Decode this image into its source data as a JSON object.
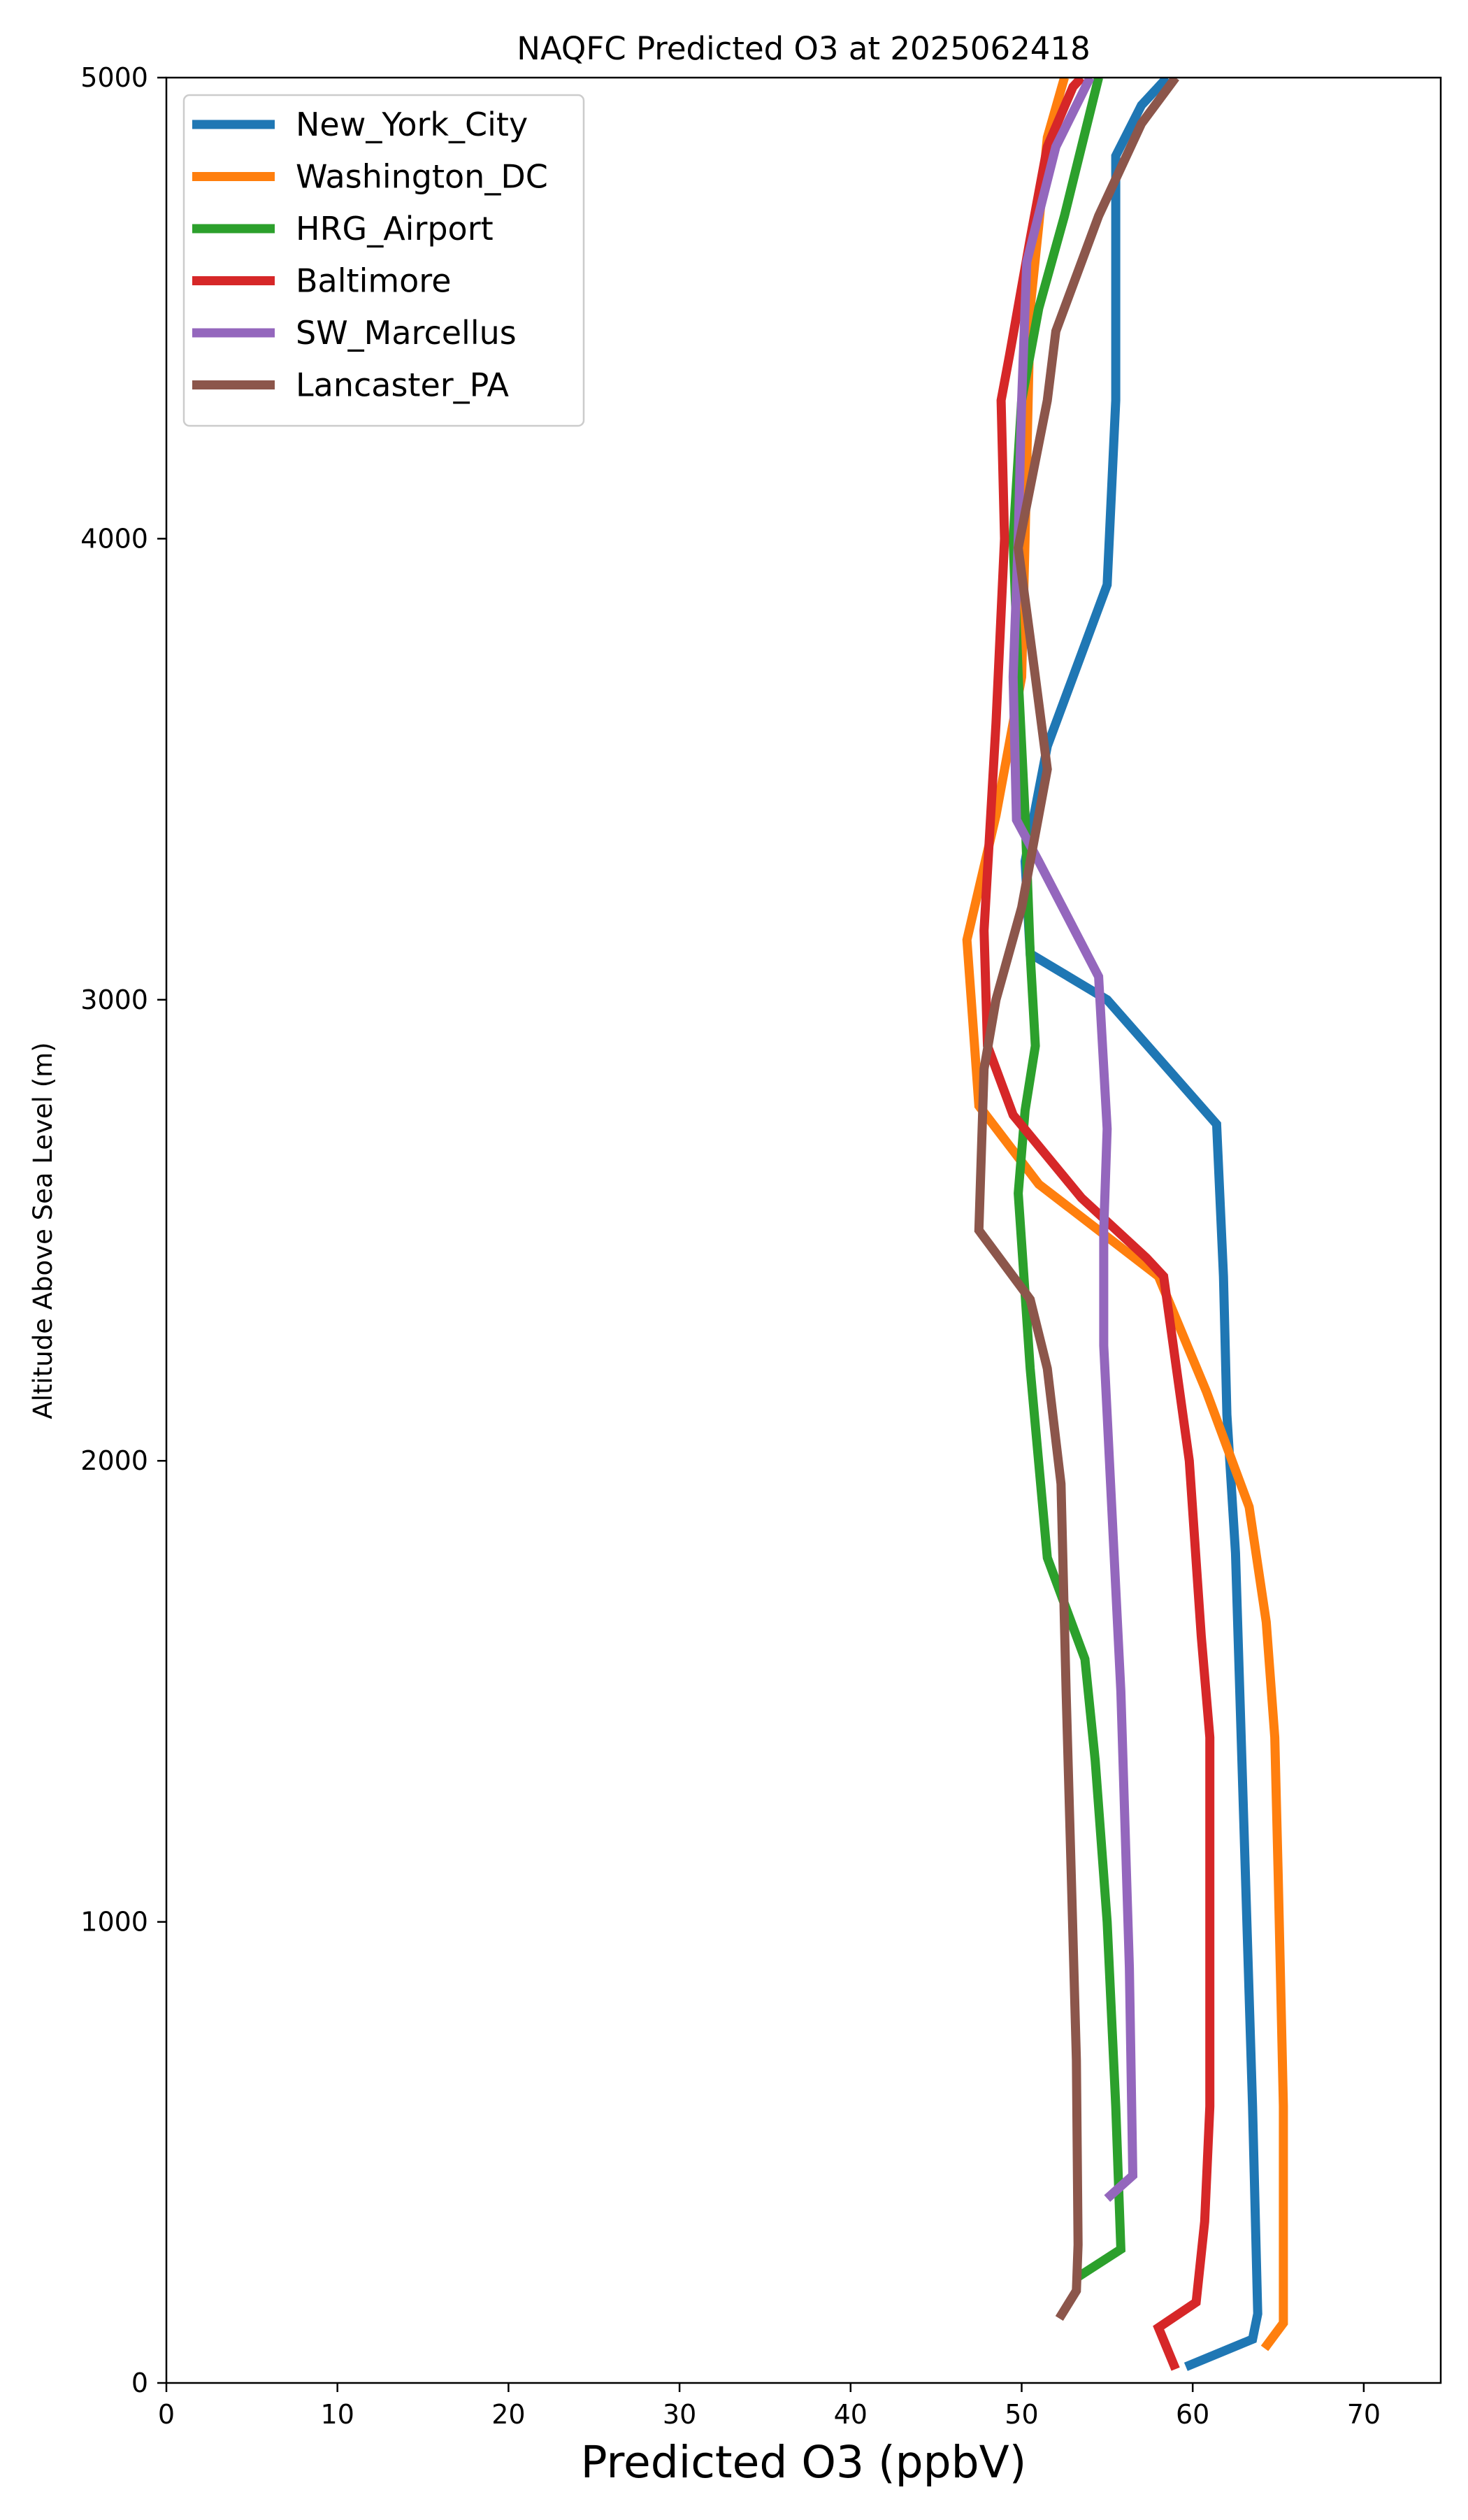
{
  "chart_data": {
    "type": "line",
    "title": "NAQFC Predicted O3 at 2025062418",
    "xlabel": "Predicted O3 (ppbV)",
    "ylabel": "Altitude Above Sea Level (m)",
    "xlim": [
      0,
      74.5
    ],
    "ylim": [
      0,
      5000
    ],
    "xticks": [
      0,
      10,
      20,
      30,
      40,
      50,
      60,
      70
    ],
    "yticks": [
      0,
      1000,
      2000,
      3000,
      4000,
      5000
    ],
    "grid": false,
    "legend_position": "top-left",
    "series": [
      {
        "name": "New_York_City",
        "color": "#1f77b4",
        "points": [
          [
            59.6,
            35
          ],
          [
            63.5,
            95
          ],
          [
            63.8,
            150
          ],
          [
            63.5,
            600
          ],
          [
            63,
            1200
          ],
          [
            62.5,
            1800
          ],
          [
            62,
            2100
          ],
          [
            61.8,
            2400
          ],
          [
            61.4,
            2730
          ],
          [
            55,
            3000
          ],
          [
            50.5,
            3100
          ],
          [
            50.2,
            3300
          ],
          [
            51.5,
            3550
          ],
          [
            55,
            3900
          ],
          [
            55.5,
            4300
          ],
          [
            55.5,
            4830
          ],
          [
            57,
            4940
          ],
          [
            58.5,
            5000
          ]
        ]
      },
      {
        "name": "Washington_DC",
        "color": "#ff7f0e",
        "points": [
          [
            64.2,
            75
          ],
          [
            65.3,
            130
          ],
          [
            65.3,
            600
          ],
          [
            65,
            1100
          ],
          [
            64.8,
            1400
          ],
          [
            64.3,
            1650
          ],
          [
            63.3,
            1900
          ],
          [
            60.8,
            2150
          ],
          [
            58,
            2400
          ],
          [
            51,
            2600
          ],
          [
            47.5,
            2770
          ],
          [
            46.8,
            3130
          ],
          [
            48.5,
            3400
          ],
          [
            50,
            3700
          ],
          [
            50.2,
            4000
          ],
          [
            50.5,
            4500
          ],
          [
            51,
            4680
          ],
          [
            51.5,
            4870
          ],
          [
            52.5,
            5000
          ]
        ]
      },
      {
        "name": "HRG_Airport",
        "color": "#2ca02c",
        "points": [
          [
            53.3,
            230
          ],
          [
            55.8,
            290
          ],
          [
            55.5,
            600
          ],
          [
            55,
            1000
          ],
          [
            54.3,
            1350
          ],
          [
            53.7,
            1570
          ],
          [
            51.5,
            1790
          ],
          [
            50.5,
            2200
          ],
          [
            49.8,
            2580
          ],
          [
            50.2,
            2760
          ],
          [
            50.8,
            2900
          ],
          [
            50.5,
            3100
          ],
          [
            50.2,
            3400
          ],
          [
            49.8,
            3700
          ],
          [
            49.5,
            4000
          ],
          [
            50,
            4300
          ],
          [
            51,
            4500
          ],
          [
            52.5,
            4700
          ],
          [
            53.5,
            4850
          ],
          [
            54.5,
            5000
          ]
        ]
      },
      {
        "name": "Baltimore",
        "color": "#d62728",
        "points": [
          [
            59,
            30
          ],
          [
            58,
            120
          ],
          [
            60.2,
            175
          ],
          [
            60.7,
            350
          ],
          [
            61,
            600
          ],
          [
            61,
            1000
          ],
          [
            61,
            1400
          ],
          [
            60.5,
            1620
          ],
          [
            59.8,
            2000
          ],
          [
            58.3,
            2400
          ],
          [
            57.3,
            2440
          ],
          [
            53.5,
            2570
          ],
          [
            49.5,
            2750
          ],
          [
            48,
            2900
          ],
          [
            47.8,
            3150
          ],
          [
            48.5,
            3600
          ],
          [
            49,
            4000
          ],
          [
            48.8,
            4300
          ],
          [
            49.3,
            4400
          ],
          [
            50.5,
            4650
          ],
          [
            51.5,
            4850
          ],
          [
            53,
            4980
          ],
          [
            53.5,
            5000
          ]
        ]
      },
      {
        "name": "SW_Marcellus",
        "color": "#9467bd",
        "points": [
          [
            55,
            400
          ],
          [
            56.5,
            450
          ],
          [
            56.3,
            900
          ],
          [
            55.8,
            1500
          ],
          [
            55.2,
            1950
          ],
          [
            54.8,
            2250
          ],
          [
            54.8,
            2500
          ],
          [
            55,
            2720
          ],
          [
            54.5,
            3050
          ],
          [
            51,
            3300
          ],
          [
            49.7,
            3390
          ],
          [
            49.5,
            3700
          ],
          [
            49.8,
            4000
          ],
          [
            50,
            4300
          ],
          [
            50.3,
            4600
          ],
          [
            52,
            4850
          ],
          [
            54,
            5000
          ]
        ]
      },
      {
        "name": "Lancaster_PA",
        "color": "#8c564b",
        "points": [
          [
            52.2,
            140
          ],
          [
            53.2,
            200
          ],
          [
            53.3,
            300
          ],
          [
            53.2,
            700
          ],
          [
            52.9,
            1100
          ],
          [
            52.6,
            1500
          ],
          [
            52.3,
            1950
          ],
          [
            51.5,
            2200
          ],
          [
            50.5,
            2350
          ],
          [
            47.5,
            2500
          ],
          [
            47.8,
            2850
          ],
          [
            48.5,
            3000
          ],
          [
            50,
            3200
          ],
          [
            51.5,
            3500
          ],
          [
            50.8,
            3700
          ],
          [
            49.8,
            3980
          ],
          [
            51.5,
            4300
          ],
          [
            52,
            4450
          ],
          [
            54.5,
            4700
          ],
          [
            57,
            4900
          ],
          [
            59,
            5000
          ]
        ]
      }
    ]
  }
}
